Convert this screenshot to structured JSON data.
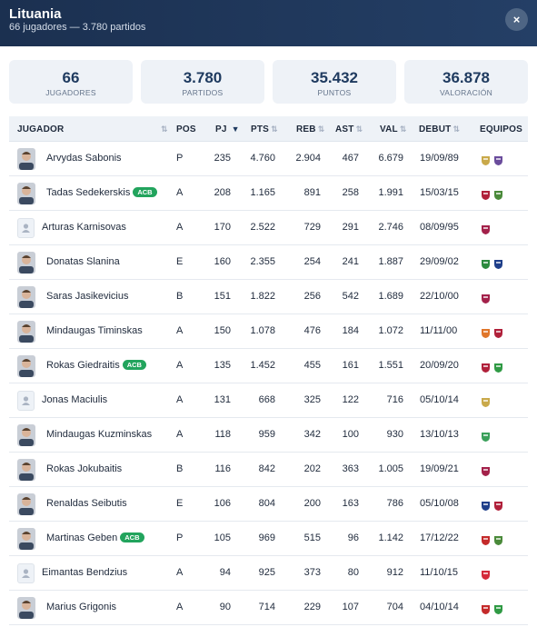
{
  "header": {
    "title": "Lituania",
    "subtitle": "66 jugadores — 3.780 partidos",
    "close_label": "×"
  },
  "stats": [
    {
      "value": "66",
      "label": "JUGADORES"
    },
    {
      "value": "3.780",
      "label": "PARTIDOS"
    },
    {
      "value": "35.432",
      "label": "PUNTOS"
    },
    {
      "value": "36.878",
      "label": "VALORACIÓN"
    }
  ],
  "table": {
    "columns": {
      "jugador": "JUGADOR",
      "pos": "POS",
      "pj": "PJ",
      "pts": "PTS",
      "reb": "REB",
      "ast": "AST",
      "val": "VAL",
      "debut": "DEBUT",
      "equipos": "EQUIPOS"
    },
    "sort_active_icon": "▼",
    "sort_icon": "⇅",
    "badge_label": "ACB",
    "rows": [
      {
        "name": "Arvydas Sabonis",
        "acb": false,
        "avatar": "photo",
        "pos": "P",
        "pj": "235",
        "pts": "4.760",
        "reb": "2.904",
        "ast": "467",
        "val": "6.679",
        "debut": "19/09/89",
        "teams": [
          "real-madrid-crest-icon",
          "valladolid-crest-icon"
        ]
      },
      {
        "name": "Tadas Sedekerskis",
        "acb": true,
        "avatar": "photo",
        "pos": "A",
        "pj": "208",
        "pts": "1.165",
        "reb": "891",
        "ast": "258",
        "val": "1.991",
        "debut": "15/03/15",
        "teams": [
          "baskonia-crest-icon",
          "obradoiro-crest-icon"
        ]
      },
      {
        "name": "Arturas Karnisovas",
        "acb": false,
        "avatar": "placeholder",
        "pos": "A",
        "pj": "170",
        "pts": "2.522",
        "reb": "729",
        "ast": "291",
        "val": "2.746",
        "debut": "08/09/95",
        "teams": [
          "barcelona-crest-icon"
        ]
      },
      {
        "name": "Donatas Slanina",
        "acb": false,
        "avatar": "photo",
        "pos": "E",
        "pj": "160",
        "pts": "2.355",
        "reb": "254",
        "ast": "241",
        "val": "1.887",
        "debut": "29/09/02",
        "teams": [
          "betis-crest-icon",
          "bilbao-crest-icon"
        ]
      },
      {
        "name": "Saras Jasikevicius",
        "acb": false,
        "avatar": "photo",
        "pos": "B",
        "pj": "151",
        "pts": "1.822",
        "reb": "256",
        "ast": "542",
        "val": "1.689",
        "debut": "22/10/00",
        "teams": [
          "barcelona-crest-icon"
        ]
      },
      {
        "name": "Mindaugas Timinskas",
        "acb": false,
        "avatar": "photo",
        "pos": "A",
        "pj": "150",
        "pts": "1.078",
        "reb": "476",
        "ast": "184",
        "val": "1.072",
        "debut": "11/11/00",
        "teams": [
          "valencia-crest-icon",
          "baskonia-crest-icon"
        ]
      },
      {
        "name": "Rokas Giedraitis",
        "acb": true,
        "avatar": "photo",
        "pos": "A",
        "pj": "135",
        "pts": "1.452",
        "reb": "455",
        "ast": "161",
        "val": "1.551",
        "debut": "20/09/20",
        "teams": [
          "baskonia-crest-icon",
          "joventut-crest-icon"
        ]
      },
      {
        "name": "Jonas Maciulis",
        "acb": false,
        "avatar": "placeholder",
        "pos": "A",
        "pj": "131",
        "pts": "668",
        "reb": "325",
        "ast": "122",
        "val": "716",
        "debut": "05/10/14",
        "teams": [
          "real-madrid-crest-icon"
        ]
      },
      {
        "name": "Mindaugas Kuzminskas",
        "acb": false,
        "avatar": "photo",
        "pos": "A",
        "pj": "118",
        "pts": "959",
        "reb": "342",
        "ast": "100",
        "val": "930",
        "debut": "13/10/13",
        "teams": [
          "unicaja-crest-icon"
        ]
      },
      {
        "name": "Rokas Jokubaitis",
        "acb": false,
        "avatar": "photo",
        "pos": "B",
        "pj": "116",
        "pts": "842",
        "reb": "202",
        "ast": "363",
        "val": "1.005",
        "debut": "19/09/21",
        "teams": [
          "barcelona-crest-icon"
        ]
      },
      {
        "name": "Renaldas Seibutis",
        "acb": false,
        "avatar": "photo",
        "pos": "E",
        "pj": "106",
        "pts": "804",
        "reb": "200",
        "ast": "163",
        "val": "786",
        "debut": "05/10/08",
        "teams": [
          "bilbao-crest-icon",
          "baskonia-crest-icon"
        ]
      },
      {
        "name": "Martinas Geben",
        "acb": true,
        "avatar": "photo",
        "pos": "P",
        "pj": "105",
        "pts": "969",
        "reb": "515",
        "ast": "96",
        "val": "1.142",
        "debut": "17/12/22",
        "teams": [
          "zaragoza-crest-icon",
          "obradoiro-crest-icon"
        ]
      },
      {
        "name": "Eimantas Bendzius",
        "acb": false,
        "avatar": "placeholder",
        "pos": "A",
        "pj": "94",
        "pts": "925",
        "reb": "373",
        "ast": "80",
        "val": "912",
        "debut": "11/10/15",
        "teams": [
          "fuenlabrada-crest-icon"
        ]
      },
      {
        "name": "Marius Grigonis",
        "acb": false,
        "avatar": "photo",
        "pos": "A",
        "pj": "90",
        "pts": "714",
        "reb": "229",
        "ast": "107",
        "val": "704",
        "debut": "04/10/14",
        "teams": [
          "zaragoza-crest-icon",
          "joventut-crest-icon"
        ]
      }
    ]
  },
  "colors": {
    "header_bg": "#1b3050",
    "accent": "#1e3a5f",
    "badge_green": "#22a45d",
    "card_bg": "#eef2f7"
  }
}
